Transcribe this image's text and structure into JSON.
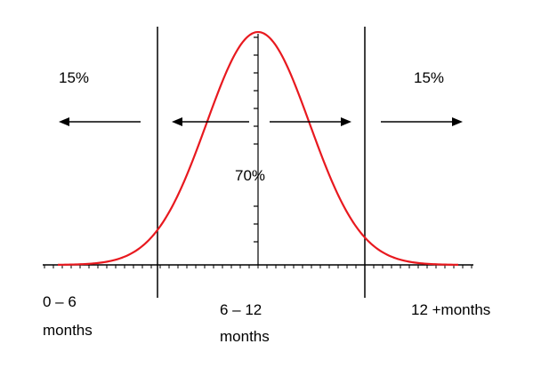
{
  "percent_left": "15%",
  "percent_center": "70%",
  "percent_right": "15%",
  "region_left": {
    "line1": "0 – 6",
    "line2": "months"
  },
  "region_center": {
    "line1": "6 – 12",
    "line2": "months"
  },
  "region_right": {
    "line1": "12 +months"
  },
  "colors": {
    "curve": "#e8191f",
    "lines": "#000000"
  }
}
